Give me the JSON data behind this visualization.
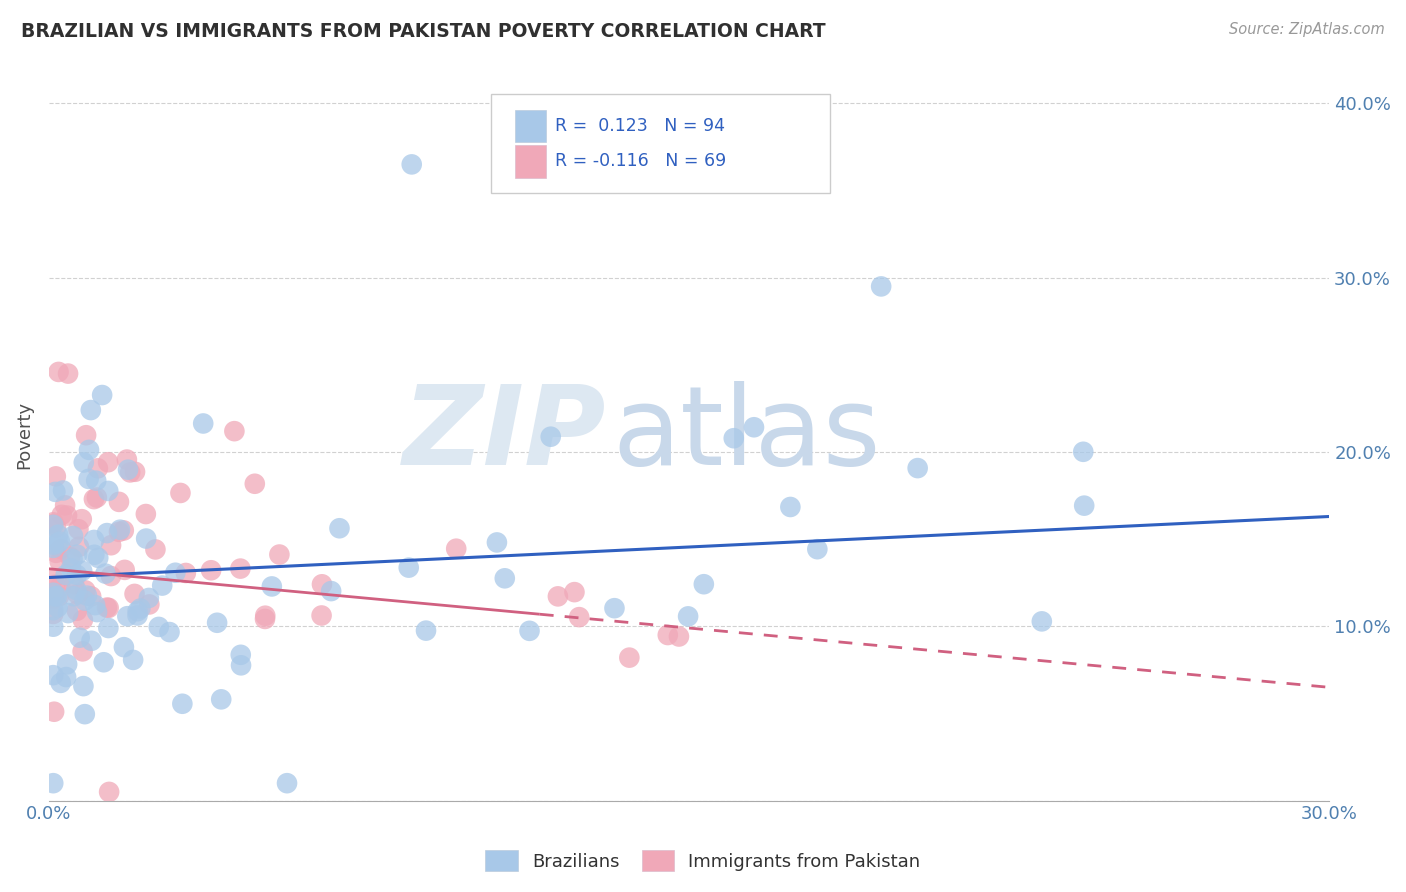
{
  "title": "BRAZILIAN VS IMMIGRANTS FROM PAKISTAN POVERTY CORRELATION CHART",
  "source": "Source: ZipAtlas.com",
  "ylabel": "Poverty",
  "xlim": [
    0.0,
    0.3
  ],
  "ylim": [
    0.0,
    0.42
  ],
  "brazil_color": "#a8c8e8",
  "pakistan_color": "#f0a8b8",
  "brazil_line_color": "#3060c0",
  "pakistan_line_color": "#d06080",
  "brazil_R": 0.123,
  "brazil_N": 94,
  "pakistan_R": -0.116,
  "pakistan_N": 69,
  "grid_color": "#cccccc",
  "background_color": "#ffffff",
  "title_color": "#303030",
  "axis_label_color": "#505050",
  "tick_color": "#5080b0",
  "legend_text_color": "#3060c0",
  "watermark_zip_color": "#dde8f2",
  "watermark_atlas_color": "#c8d8ea"
}
